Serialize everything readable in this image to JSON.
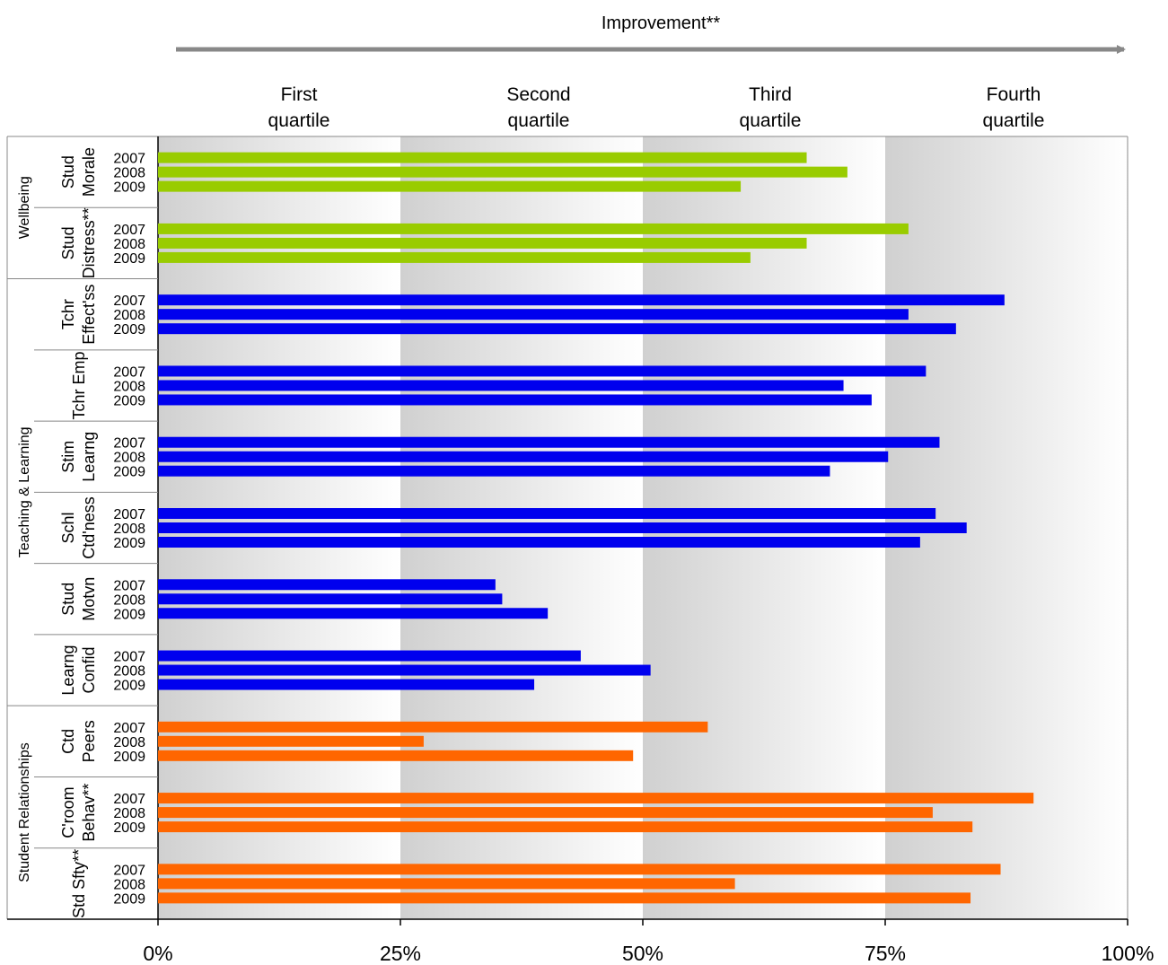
{
  "chart_data": {
    "type": "bar",
    "orientation": "horizontal",
    "top_label": "Improvement**",
    "xlim": [
      0,
      100
    ],
    "x_ticks": [
      "0%",
      "25%",
      "50%",
      "75%",
      "100%"
    ],
    "quartiles": [
      {
        "line1": "First",
        "line2": "quartile"
      },
      {
        "line1": "Second",
        "line2": "quartile"
      },
      {
        "line1": "Third",
        "line2": "quartile"
      },
      {
        "line1": "Fourth",
        "line2": "quartile"
      }
    ],
    "colors": {
      "Wellbeing": "#99cc00",
      "Teaching & Learning": "#0000ee",
      "Student Relationships": "#ff6600"
    },
    "groups": [
      {
        "name": "Wellbeing",
        "color_key": "Wellbeing",
        "measures": [
          {
            "line1": "Stud",
            "line2": "Morale",
            "values": [
              {
                "year": "2007",
                "value": 66.9
              },
              {
                "year": "2008",
                "value": 71.1
              },
              {
                "year": "2009",
                "value": 60.1
              }
            ]
          },
          {
            "line1": "Stud",
            "line2": "Distress**",
            "values": [
              {
                "year": "2007",
                "value": 77.4
              },
              {
                "year": "2008",
                "value": 66.9
              },
              {
                "year": "2009",
                "value": 61.1
              }
            ]
          }
        ]
      },
      {
        "name": "Teaching & Learning",
        "color_key": "Teaching & Learning",
        "measures": [
          {
            "line1": "Tchr",
            "line2": "Effect'ss",
            "values": [
              {
                "year": "2007",
                "value": 87.3
              },
              {
                "year": "2008",
                "value": 77.4
              },
              {
                "year": "2009",
                "value": 82.3
              }
            ]
          },
          {
            "line1": "",
            "line2": "Tchr Emp",
            "values": [
              {
                "year": "2007",
                "value": 79.2
              },
              {
                "year": "2008",
                "value": 70.7
              },
              {
                "year": "2009",
                "value": 73.6
              }
            ]
          },
          {
            "line1": "Stim",
            "line2": "Learng",
            "values": [
              {
                "year": "2007",
                "value": 80.6
              },
              {
                "year": "2008",
                "value": 75.3
              },
              {
                "year": "2009",
                "value": 69.3
              }
            ]
          },
          {
            "line1": "Schl",
            "line2": "Ctd'ness",
            "values": [
              {
                "year": "2007",
                "value": 80.2
              },
              {
                "year": "2008",
                "value": 83.4
              },
              {
                "year": "2009",
                "value": 78.6
              }
            ]
          },
          {
            "line1": "Stud",
            "line2": "Motvn",
            "values": [
              {
                "year": "2007",
                "value": 34.8
              },
              {
                "year": "2008",
                "value": 35.5
              },
              {
                "year": "2009",
                "value": 40.2
              }
            ]
          },
          {
            "line1": "Learng",
            "line2": "Confid",
            "values": [
              {
                "year": "2007",
                "value": 43.6
              },
              {
                "year": "2008",
                "value": 50.8
              },
              {
                "year": "2009",
                "value": 38.8
              }
            ]
          }
        ]
      },
      {
        "name": "Student Relationships",
        "color_key": "Student Relationships",
        "measures": [
          {
            "line1": "Ctd",
            "line2": "Peers",
            "values": [
              {
                "year": "2007",
                "value": 56.7
              },
              {
                "year": "2008",
                "value": 27.4
              },
              {
                "year": "2009",
                "value": 49.0
              }
            ]
          },
          {
            "line1": "C'room",
            "line2": "Behav**",
            "values": [
              {
                "year": "2007",
                "value": 90.3
              },
              {
                "year": "2008",
                "value": 79.9
              },
              {
                "year": "2009",
                "value": 84.0
              }
            ]
          },
          {
            "line1": "Std Sfty**",
            "line2": "",
            "values": [
              {
                "year": "2007",
                "value": 86.9
              },
              {
                "year": "2008",
                "value": 59.5
              },
              {
                "year": "2009",
                "value": 83.8
              }
            ]
          }
        ]
      }
    ]
  }
}
